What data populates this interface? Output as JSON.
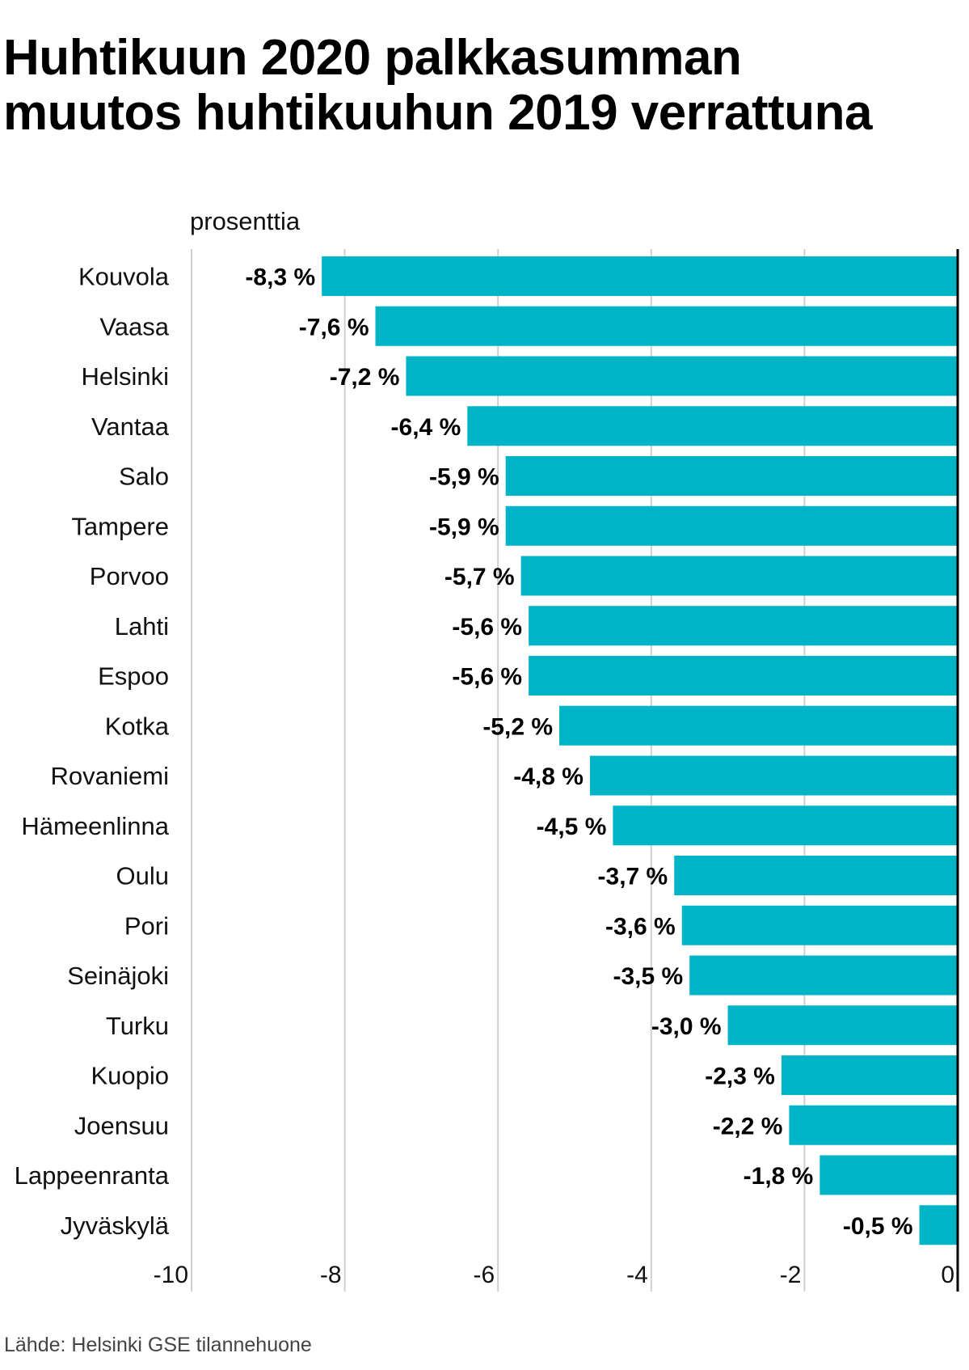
{
  "title_lines": [
    "Huhtikuun 2020 palkkasumman",
    "muutos huhtikuuhun 2019 verrattuna"
  ],
  "source": "Lähde: Helsinki GSE tilannehuone",
  "colors": {
    "bar": "#00b4c8",
    "grid": "#cfcfcf",
    "zero_line": "#000000",
    "label": "#000000"
  },
  "chart_data": {
    "type": "bar",
    "orientation": "horizontal",
    "title": "Huhtikuun 2020 palkkasumman muutos huhtikuuhun 2019 verrattuna",
    "xlabel": "prosenttia",
    "ylabel": "",
    "xlim": [
      -10,
      0
    ],
    "xticks": [
      -10,
      -8,
      -6,
      -4,
      -2,
      0
    ],
    "xtick_labels": [
      "-10",
      "-8",
      "-6",
      "-4",
      "-2",
      "0"
    ],
    "grid": true,
    "categories": [
      "Kouvola",
      "Vaasa",
      "Helsinki",
      "Vantaa",
      "Salo",
      "Tampere",
      "Porvoo",
      "Lahti",
      "Espoo",
      "Kotka",
      "Rovaniemi",
      "Hämeenlinna",
      "Oulu",
      "Pori",
      "Seinäjoki",
      "Turku",
      "Kuopio",
      "Joensuu",
      "Lappeenranta",
      "Jyväskylä"
    ],
    "values": [
      -8.3,
      -7.6,
      -7.2,
      -6.4,
      -5.9,
      -5.9,
      -5.7,
      -5.6,
      -5.6,
      -5.2,
      -4.8,
      -4.5,
      -3.7,
      -3.6,
      -3.5,
      -3.0,
      -2.3,
      -2.2,
      -1.8,
      -0.5
    ],
    "value_labels": [
      "-8,3 %",
      "-7,6 %",
      "-7,2 %",
      "-6,4 %",
      "-5,9 %",
      "-5,9 %",
      "-5,7 %",
      "-5,6 %",
      "-5,6 %",
      "-5,2 %",
      "-4,8 %",
      "-4,5 %",
      "-3,7 %",
      "-3,6 %",
      "-3,5 %",
      "-3,0 %",
      "-2,3 %",
      "-2,2 %",
      "-1,8 %",
      "-0,5 %"
    ]
  }
}
